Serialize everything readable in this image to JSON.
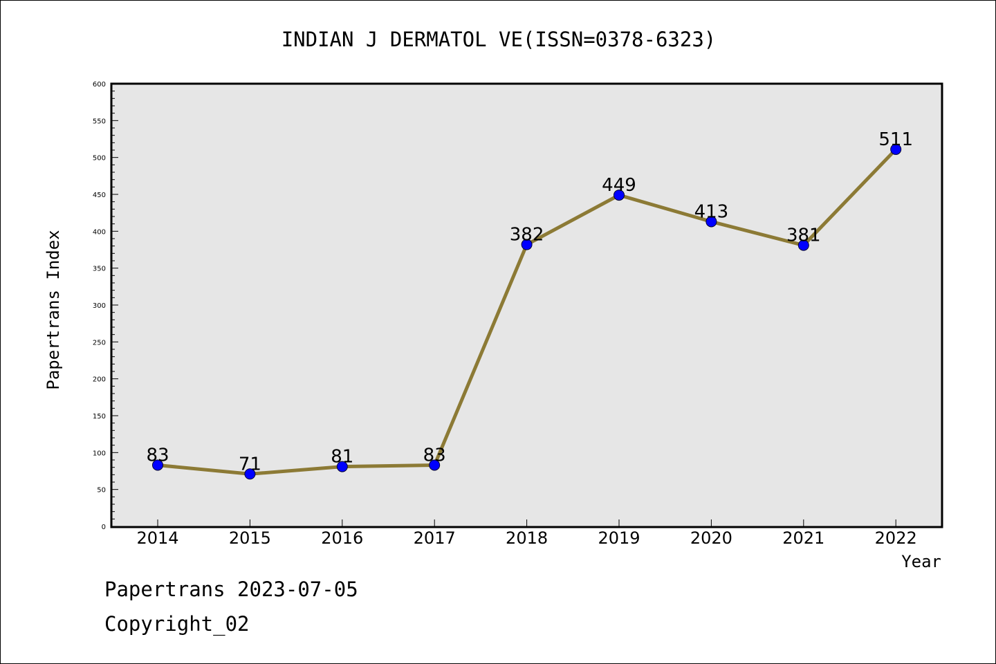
{
  "chart_data": {
    "type": "line",
    "title": "INDIAN J DERMATOL VE(ISSN=0378-6323)",
    "xlabel": "Year",
    "ylabel": "Papertrans Index",
    "categories": [
      "2014",
      "2015",
      "2016",
      "2017",
      "2018",
      "2019",
      "2020",
      "2021",
      "2022"
    ],
    "series": [
      {
        "values": [
          83,
          71,
          81,
          83,
          382,
          449,
          413,
          381,
          511
        ]
      }
    ],
    "data_labels": [
      "83",
      "71",
      "81",
      "83",
      "382",
      "449",
      "413",
      "381",
      "511"
    ],
    "ylim": [
      0,
      600
    ],
    "yticks": [
      "0",
      "50",
      "100",
      "150",
      "200",
      "250",
      "300",
      "350",
      "400",
      "450",
      "500",
      "550",
      "600"
    ],
    "grid": false,
    "line_color": "#8c7a35",
    "marker_color": "#0000ff",
    "plot_background": "#e6e6e6"
  },
  "footer": {
    "date_text": "Papertrans 2023-07-05",
    "copyright_text": "Copyright_02"
  }
}
